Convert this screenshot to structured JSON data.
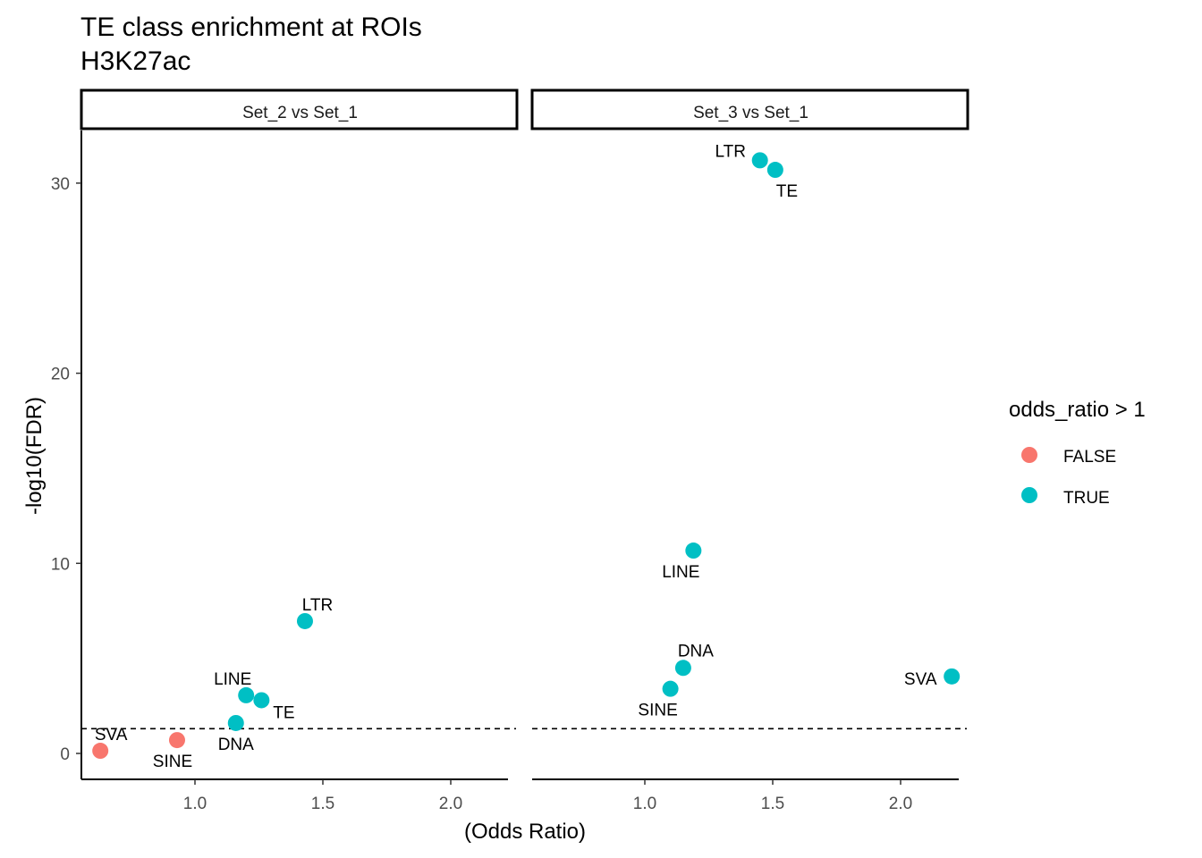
{
  "chart_data": {
    "type": "scatter",
    "title": "TE class enrichment at ROIs",
    "subtitle": "H3K27ac",
    "xlabel": "(Odds Ratio)",
    "ylabel": "-log10(FDR)",
    "xlim": [
      0.55,
      2.27
    ],
    "ylim": [
      -1.3,
      32.8
    ],
    "x_ticks": [
      1.0,
      1.5,
      2.0
    ],
    "x_tick_labels": [
      "1.0",
      "1.5",
      "2.0"
    ],
    "y_ticks": [
      0,
      10,
      20,
      30
    ],
    "y_tick_labels": [
      "0",
      "10",
      "20",
      "30"
    ],
    "threshold_line": 1.3,
    "grid": false,
    "legend": {
      "title": "odds_ratio > 1",
      "position": "right",
      "entries": [
        {
          "label": "FALSE",
          "color": "#F8766D"
        },
        {
          "label": "TRUE",
          "color": "#00BFC4"
        }
      ]
    },
    "panels": [
      {
        "label": "Set_2 vs Set_1",
        "points": [
          {
            "label": "SVA",
            "x": 0.63,
            "y": 0.14,
            "group": "FALSE"
          },
          {
            "label": "SINE",
            "x": 0.93,
            "y": 0.7,
            "group": "FALSE"
          },
          {
            "label": "DNA",
            "x": 1.16,
            "y": 1.6,
            "group": "TRUE"
          },
          {
            "label": "LINE",
            "x": 1.2,
            "y": 3.06,
            "group": "TRUE"
          },
          {
            "label": "TE",
            "x": 1.26,
            "y": 2.8,
            "group": "TRUE"
          },
          {
            "label": "LTR",
            "x": 1.43,
            "y": 6.96,
            "group": "TRUE"
          }
        ]
      },
      {
        "label": "Set_3 vs Set_1",
        "points": [
          {
            "label": "LTR",
            "x": 1.45,
            "y": 31.2,
            "group": "TRUE"
          },
          {
            "label": "TE",
            "x": 1.51,
            "y": 30.7,
            "group": "TRUE"
          },
          {
            "label": "LINE",
            "x": 1.19,
            "y": 10.67,
            "group": "TRUE"
          },
          {
            "label": "DNA",
            "x": 1.15,
            "y": 4.5,
            "group": "TRUE"
          },
          {
            "label": "SINE",
            "x": 1.1,
            "y": 3.4,
            "group": "TRUE"
          },
          {
            "label": "SVA",
            "x": 2.2,
            "y": 4.05,
            "group": "TRUE"
          }
        ]
      }
    ]
  }
}
